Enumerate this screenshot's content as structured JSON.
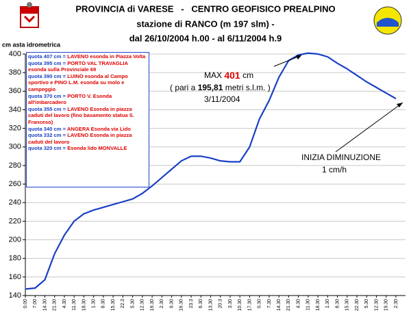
{
  "chart_data": {
    "type": "line",
    "title": "PROVINCIA di VARESE   -   CENTRO GEOFISICO PREALPINO",
    "subtitle": "stazione di RANCO (m 197 slm) -",
    "subtitle2": "dal 26/10/2004 h.00 - al 6/11/2004 h.9",
    "y_label": "cm asta idrometrica",
    "categories": [
      "0.00",
      "7.00",
      "14.30",
      "21.30",
      "4.30",
      "11.30",
      "18.30",
      "1.30",
      "8.30",
      "15.30",
      "22.3",
      "5.30",
      "12.30",
      "19.30",
      "2.30",
      "9.30",
      "16.30",
      "23.3",
      "6.30",
      "13.30",
      "20.3",
      "3.30",
      "10.30",
      "17.30",
      "0.30",
      "7.30",
      "14.30",
      "21.30",
      "4.30",
      "11.30",
      "18.30",
      "1.30",
      "8.30",
      "15.30",
      "22.30",
      "5.30",
      "12.30",
      "19.30",
      "2.30"
    ],
    "values": [
      147,
      148,
      157,
      185,
      205,
      220,
      228,
      232,
      235,
      238,
      241,
      244,
      250,
      258,
      267,
      276,
      285,
      290,
      290,
      288,
      285,
      284,
      284,
      300,
      330,
      350,
      375,
      393,
      399,
      401,
      400,
      397,
      390,
      384,
      377,
      370,
      364,
      358,
      352
    ],
    "color": "#1a3fc4",
    "ylim": [
      140,
      400
    ],
    "yticks": [
      140,
      160,
      180,
      200,
      220,
      240,
      260,
      280,
      300,
      320,
      340,
      360,
      380,
      400
    ],
    "grid": true,
    "annotations": {
      "max_label": "MAX",
      "max_value": "401",
      "max_unit": "cm",
      "max_note_open": "( pari a",
      "max_note_value": "195,81",
      "max_note_close": "metri s.l.m. )",
      "max_date": "3/11/2004",
      "decrease": "INIZIA DIMINUZIONE",
      "rate": "1 cm/h"
    },
    "levels": [
      {
        "quota": "quota 407 cm =",
        "text": "LAVENO esonda in Piazza Volta"
      },
      {
        "quota": "quota 395 cm =",
        "text": "PORTO VAL TRAVAGLIA esonda sulla Provinciale 69"
      },
      {
        "quota": "quota 390 cm =",
        "text": "LUINO esonda al Campo sportivo e PINO L.M. esonda su molo e campeggio"
      },
      {
        "quota": "quota 370 cm =",
        "text": "PORTO V. Esonda all'imbarcadero"
      },
      {
        "quota": "quota 355 cm =",
        "text": "LAVENO Esonda in piazza caduti del lavoro (fino basamento statua S. Franceso)"
      },
      {
        "quota": "quota 340 cm =",
        "text": "ANGERA Esonda via Lido"
      },
      {
        "quota": "quota 332 cm =",
        "text": "LAVENO Esonda in piazza caduti del lavoro"
      },
      {
        "quota": "quota 320 cm =",
        "text": "Esonda lido MONVALLE"
      }
    ]
  }
}
